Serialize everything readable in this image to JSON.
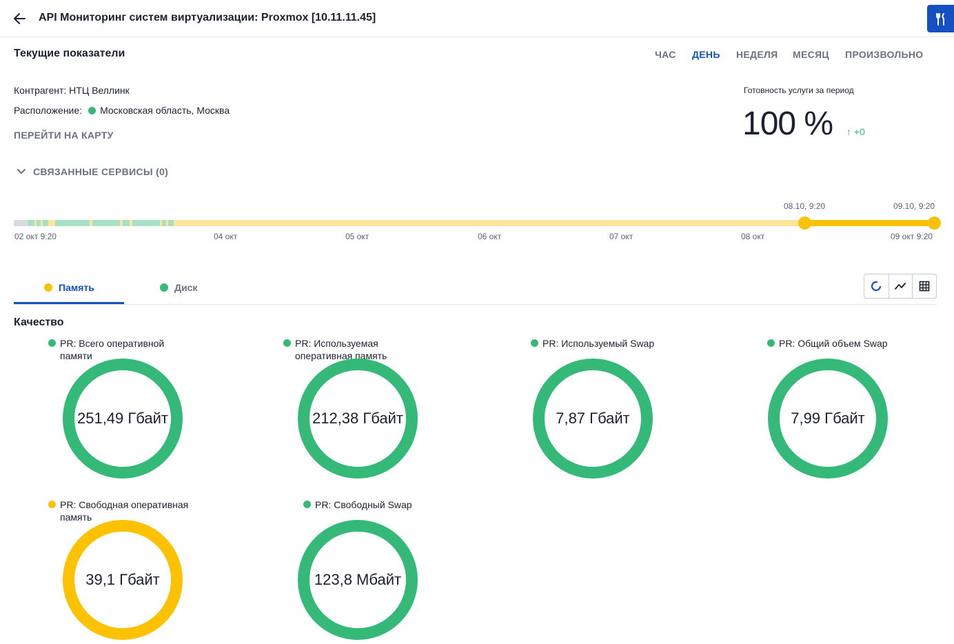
{
  "header": {
    "title": "API Мониторинг систем виртуализации: Proxmox [10.11.11.45]"
  },
  "current": {
    "section_title": "Текущие показатели",
    "period_tabs": [
      "ЧАС",
      "ДЕНЬ",
      "НЕДЕЛЯ",
      "МЕСЯЦ",
      "ПРОИЗВОЛЬНО"
    ],
    "active_period": "ДЕНЬ",
    "contractor_line": "Контрагент: НТЦ Веллинк",
    "location_label": "Расположение:",
    "location_value": "Московская область, Москва",
    "location_status_color": "#35b978",
    "map_link": "ПЕРЕЙТИ НА КАРТУ",
    "related_services": "СВЯЗАННЫЕ СЕРВИСЫ (0)",
    "readiness": {
      "label": "Готовность услуги за период",
      "value": "100 %",
      "delta": "↑ +0"
    }
  },
  "timeline": {
    "range_start_label": "08.10, 9:20",
    "range_end_label": "09.10, 9:20",
    "ticks": [
      "02 окт 9:20",
      "04 окт",
      "05 окт",
      "06 окт",
      "07 окт",
      "08 окт",
      "09 окт 9:20"
    ],
    "colors": {
      "base": "#fde69a",
      "range": "#f8c10a",
      "ok": "#a8e0c6",
      "nodata": "#d9dbe0"
    }
  },
  "tabs": [
    {
      "label": "Память",
      "status_color": "#f8c10a",
      "active": true
    },
    {
      "label": "Диск",
      "status_color": "#35b978",
      "active": false
    }
  ],
  "view_modes": [
    "donut-view-icon",
    "line-chart-icon",
    "table-view-icon"
  ],
  "quality": {
    "title": "Качество",
    "metrics": [
      {
        "label_line1": "PR: Всего оперативной",
        "label_line2": "памяти",
        "value": "251,49 Гбайт",
        "status": "ok"
      },
      {
        "label_line1": "PR: Используемая",
        "label_line2": "оперативная память",
        "value": "212,38 Гбайт",
        "status": "ok"
      },
      {
        "label_line1": "PR: Используемый Swap",
        "label_line2": "",
        "value": "7,87 Гбайт",
        "status": "ok"
      },
      {
        "label_line1": "PR: Общий объем Swap",
        "label_line2": "",
        "value": "7,99 Гбайт",
        "status": "ok"
      },
      {
        "label_line1": "PR: Свободная оперативная",
        "label_line2": "память",
        "value": "39,1 Гбайт",
        "status": "warning"
      },
      {
        "label_line1": "PR: Свободный Swap",
        "label_line2": "",
        "value": "123,8 Мбайт",
        "status": "ok"
      }
    ],
    "status_colors": {
      "ok": "#35b978",
      "warning": "#fcc200"
    }
  },
  "colors": {
    "accent": "#1550c2",
    "ok": "#35b978",
    "warning": "#fcc200"
  }
}
